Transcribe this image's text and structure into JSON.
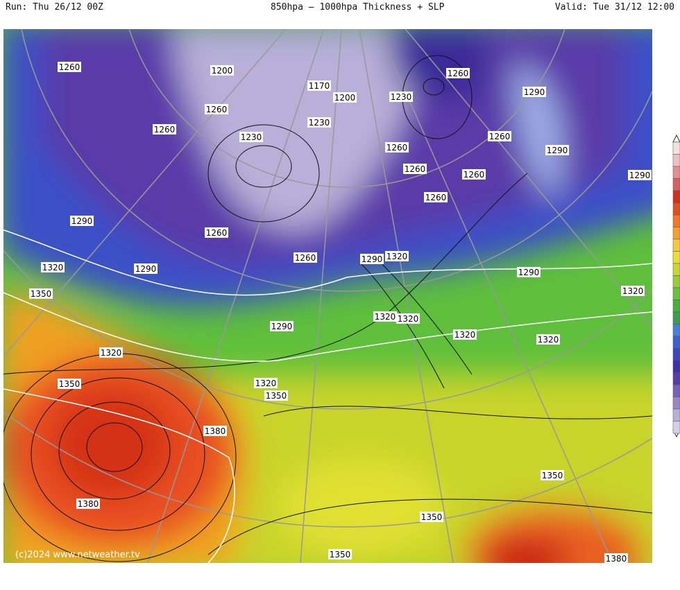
{
  "header": {
    "run": "Run: Thu 26/12 00Z",
    "title": "850hpa – 1000hpa Thickness + SLP",
    "valid": "Valid: Tue 31/12 12:00"
  },
  "map": {
    "copyright": "(c)2024 www.netweather.tv",
    "contour_labels": [
      "1260",
      "1200",
      "1170",
      "1200",
      "1230",
      "1260",
      "1290",
      "1260",
      "1260",
      "1230",
      "1230",
      "1260",
      "1260",
      "1290",
      "1260",
      "1260",
      "1260",
      "1290",
      "1290",
      "1260",
      "1320",
      "1290",
      "1260",
      "1290",
      "1320",
      "1290",
      "1350",
      "1320",
      "1320",
      "1320",
      "1290",
      "1320",
      "1320",
      "1320",
      "1350",
      "1320",
      "1350",
      "1380",
      "1380",
      "1350",
      "1350",
      "1350",
      "1380"
    ]
  }
}
